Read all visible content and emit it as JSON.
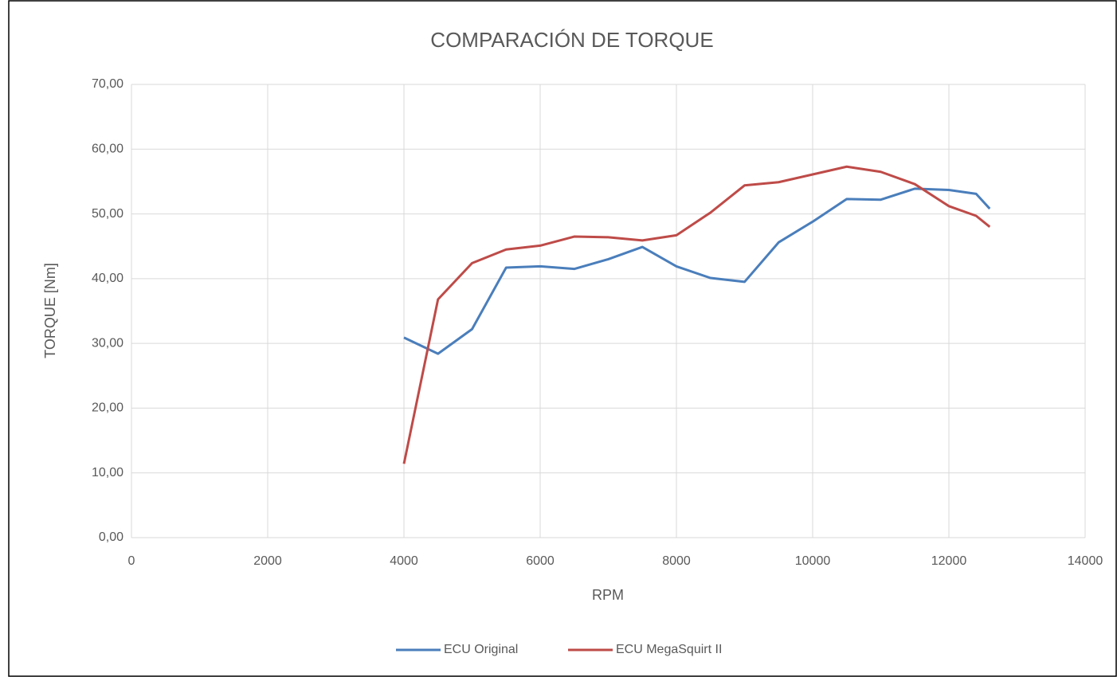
{
  "chart_data": {
    "type": "line",
    "title": "COMPARACIÓN DE TORQUE",
    "x_label": "RPM",
    "y_label": "TORQUE [Nm]",
    "x": [
      4000,
      4500,
      5000,
      5500,
      6000,
      6500,
      7000,
      7500,
      8000,
      8500,
      9000,
      9500,
      10000,
      10500,
      11000,
      11500,
      12000,
      12400,
      12600
    ],
    "series": [
      {
        "name": "ECU Original",
        "color": "#4a7ebb",
        "values": [
          30.9,
          28.4,
          32.2,
          41.7,
          41.9,
          41.5,
          43.0,
          44.9,
          41.9,
          40.1,
          39.5,
          45.6,
          48.8,
          52.3,
          52.2,
          53.9,
          53.7,
          53.1,
          50.8
        ]
      },
      {
        "name": "ECU MegaSquirt II",
        "color": "#be4b48",
        "values": [
          11.4,
          36.8,
          42.4,
          44.5,
          45.1,
          46.5,
          46.4,
          45.9,
          46.7,
          50.2,
          54.4,
          54.9,
          56.1,
          57.3,
          56.5,
          54.6,
          51.2,
          49.7,
          48.0
        ]
      }
    ],
    "xlim": [
      0,
      14000
    ],
    "xticks": [
      0,
      2000,
      4000,
      6000,
      8000,
      10000,
      12000,
      14000
    ],
    "ylim": [
      0,
      70
    ],
    "yticks": [
      {
        "value": 0,
        "label": "0,00"
      },
      {
        "value": 10,
        "label": "10,00"
      },
      {
        "value": 20,
        "label": "20,00"
      },
      {
        "value": 30,
        "label": "30,00"
      },
      {
        "value": 40,
        "label": "40,00"
      },
      {
        "value": 50,
        "label": "50,00"
      },
      {
        "value": 60,
        "label": "60,00"
      },
      {
        "value": 70,
        "label": "70,00"
      }
    ],
    "grid": true,
    "legend": "bottom"
  }
}
